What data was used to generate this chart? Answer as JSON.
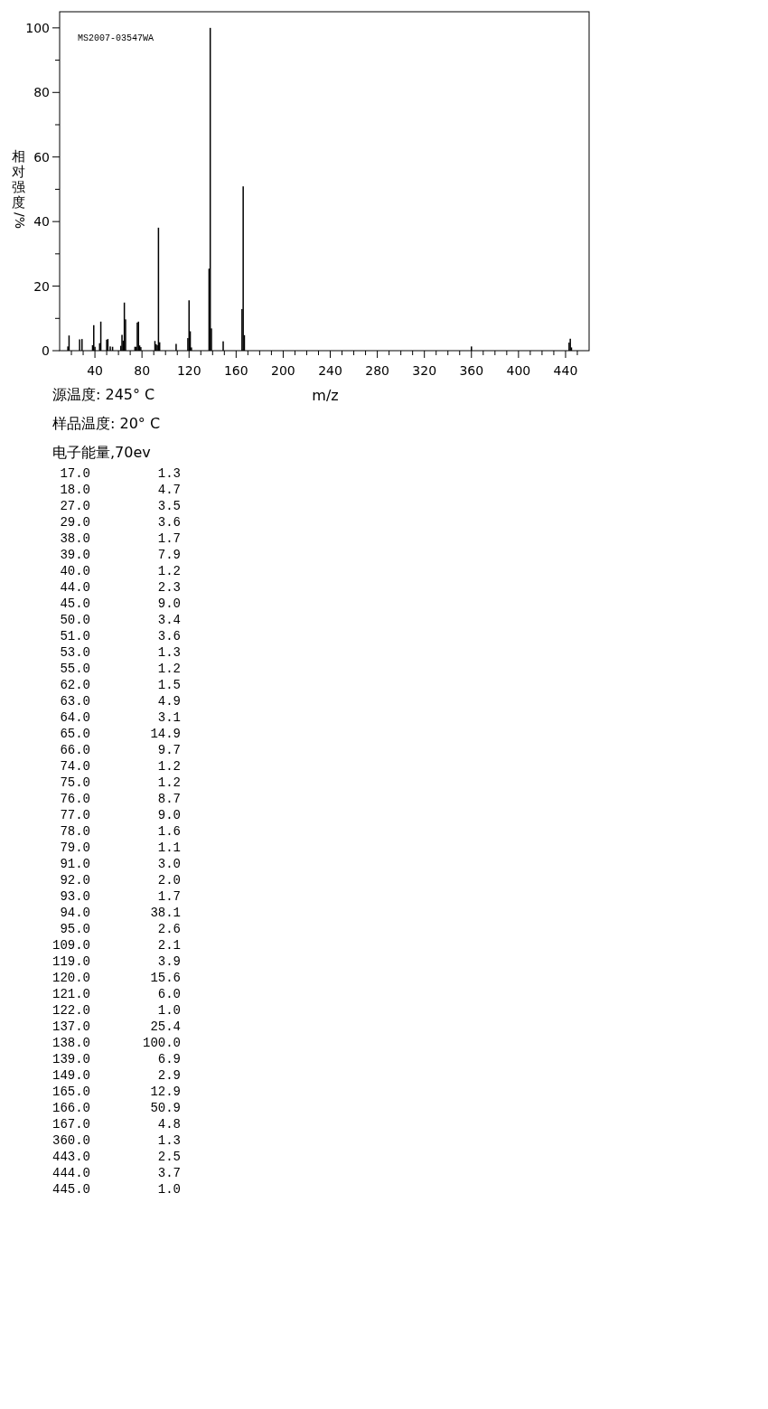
{
  "chart_data": [
    {
      "type": "bar",
      "xlabel": "m/z",
      "ylabel": "相对强度/%",
      "xlim": [
        10,
        460
      ],
      "ylim": [
        0,
        105
      ],
      "xticks": [
        {
          "value": 20,
          "label": null
        },
        {
          "value": 30,
          "label": null
        },
        40,
        {
          "value": 50,
          "label": null
        },
        {
          "value": 60,
          "label": null
        },
        {
          "value": 70,
          "label": null
        },
        80,
        {
          "value": 90,
          "label": null
        },
        {
          "value": 100,
          "label": null
        },
        {
          "value": 110,
          "label": null
        },
        120,
        {
          "value": 130,
          "label": null
        },
        {
          "value": 140,
          "label": null
        },
        {
          "value": 150,
          "label": null
        },
        160,
        {
          "value": 170,
          "label": null
        },
        {
          "value": 180,
          "label": null
        },
        {
          "value": 190,
          "label": null
        },
        200,
        {
          "value": 210,
          "label": null
        },
        {
          "value": 220,
          "label": null
        },
        {
          "value": 230,
          "label": null
        },
        240,
        {
          "value": 250,
          "label": null
        },
        {
          "value": 260,
          "label": null
        },
        {
          "value": 270,
          "label": null
        },
        280,
        {
          "value": 290,
          "label": null
        },
        {
          "value": 300,
          "label": null
        },
        {
          "value": 310,
          "label": null
        },
        320,
        {
          "value": 330,
          "label": null
        },
        {
          "value": 340,
          "label": null
        },
        {
          "value": 350,
          "label": null
        },
        360,
        {
          "value": 370,
          "label": null
        },
        {
          "value": 380,
          "label": null
        },
        {
          "value": 390,
          "label": null
        },
        400,
        {
          "value": 410,
          "label": null
        },
        {
          "value": 420,
          "label": null
        },
        {
          "value": 430,
          "label": null
        },
        440,
        {
          "value": 450,
          "label": null
        }
      ],
      "yticks": [
        0,
        {
          "value": 10,
          "label": null
        },
        20,
        {
          "value": 30,
          "label": null
        },
        40,
        {
          "value": 50,
          "label": null
        },
        60,
        {
          "value": 70,
          "label": null
        },
        80,
        {
          "value": 90,
          "label": null
        },
        100
      ],
      "x": [
        17,
        18,
        27,
        29,
        38,
        39,
        40,
        44,
        45,
        50,
        51,
        53,
        55,
        62,
        63,
        64,
        65,
        66,
        74,
        75,
        76,
        77,
        78,
        79,
        91,
        92,
        93,
        94,
        95,
        109,
        119,
        120,
        121,
        122,
        137,
        138,
        139,
        149,
        165,
        166,
        167,
        360,
        443,
        444,
        445
      ],
      "values": [
        1.3,
        4.7,
        3.5,
        3.6,
        1.7,
        7.9,
        1.2,
        2.3,
        9.0,
        3.4,
        3.6,
        1.3,
        1.2,
        1.5,
        4.9,
        3.1,
        14.9,
        9.7,
        1.2,
        1.2,
        8.7,
        9.0,
        1.6,
        1.1,
        3.0,
        2.0,
        1.7,
        38.1,
        2.6,
        2.1,
        3.9,
        15.6,
        6.0,
        1.0,
        25.4,
        100.0,
        6.9,
        2.9,
        12.9,
        50.9,
        4.8,
        1.3,
        2.5,
        3.7,
        1.0
      ],
      "color": "#000000",
      "annotations": [
        "MS2007-03547WA",
        "源温度: 245° C",
        "样品温度: 20° C",
        "电子能量,70ev"
      ]
    },
    {
      "type": "other",
      "categories": [
        "17.0",
        "18.0",
        "27.0",
        "29.0",
        "38.0",
        "39.0",
        "40.0",
        "44.0",
        "45.0",
        "50.0",
        "51.0",
        "53.0",
        "55.0",
        "62.0",
        "63.0",
        "64.0",
        "65.0",
        "66.0",
        "74.0",
        "75.0",
        "76.0",
        "77.0",
        "78.0",
        "79.0",
        "91.0",
        "92.0",
        "93.0",
        "94.0",
        "95.0",
        "109.0",
        "119.0",
        "120.0",
        "121.0",
        "122.0",
        "137.0",
        "138.0",
        "139.0",
        "149.0",
        "165.0",
        "166.0",
        "167.0",
        "360.0",
        "443.0",
        "444.0",
        "445.0"
      ],
      "values": [
        1.3,
        4.7,
        3.5,
        3.6,
        1.7,
        7.9,
        1.2,
        2.3,
        9.0,
        3.4,
        3.6,
        1.3,
        1.2,
        1.5,
        4.9,
        3.1,
        14.9,
        9.7,
        1.2,
        1.2,
        8.7,
        9.0,
        1.6,
        1.1,
        3.0,
        2.0,
        1.7,
        38.1,
        2.6,
        2.1,
        3.9,
        15.6,
        6.0,
        1.0,
        25.4,
        100.0,
        6.9,
        2.9,
        12.9,
        50.9,
        4.8,
        1.3,
        2.5,
        3.7,
        1.0
      ],
      "value_labels": [
        "1.3",
        "4.7",
        "3.5",
        "3.6",
        "1.7",
        "7.9",
        "1.2",
        "2.3",
        "9.0",
        "3.4",
        "3.6",
        "1.3",
        "1.2",
        "1.5",
        "4.9",
        "3.1",
        "14.9",
        "9.7",
        "1.2",
        "1.2",
        "8.7",
        "9.0",
        "1.6",
        "1.1",
        "3.0",
        "2.0",
        "1.7",
        "38.1",
        "2.6",
        "2.1",
        "3.9",
        "15.6",
        "6.0",
        "1.0",
        "25.4",
        "100.0",
        "6.9",
        "2.9",
        "12.9",
        "50.9",
        "4.8",
        "1.3",
        "2.5",
        "3.7",
        "1.0"
      ]
    }
  ]
}
